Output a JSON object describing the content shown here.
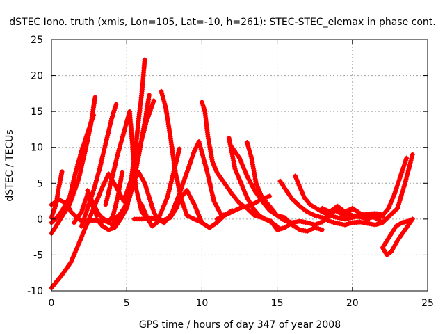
{
  "chart_data": {
    "type": "line",
    "title": "dSTEC Iono. truth (xmis, Lon=105, Lat=-10, h=261): STEC-STEC_elemax in phase cont.",
    "xlabel": "GPS time / hours of day 347 of year 2008",
    "ylabel": "dSTEC  / TECUs",
    "xlim": [
      0,
      25
    ],
    "ylim": [
      -10,
      25
    ],
    "xticks": [
      0,
      5,
      10,
      15,
      20,
      25
    ],
    "yticks": [
      -10,
      -5,
      0,
      5,
      10,
      15,
      20,
      25
    ],
    "xtick_labels": [
      "0",
      "5",
      "10",
      "15",
      "20",
      "25"
    ],
    "ytick_labels": [
      "-10",
      "-5",
      "0",
      "5",
      "10",
      "15",
      "20",
      "25"
    ],
    "grid": true,
    "marker": "plus",
    "color": "#ff0000",
    "series": [
      {
        "x": [
          0.0,
          0.3,
          0.8,
          1.3,
          1.8,
          2.2,
          2.6,
          3.0,
          3.4,
          3.8,
          4.3
        ],
        "values": [
          -9.6,
          -8.8,
          -7.5,
          -6.0,
          -3.5,
          -1.5,
          0.5,
          2.5,
          4.5,
          6.3,
          4.5
        ]
      },
      {
        "x": [
          4.3,
          4.8,
          5.3,
          5.6,
          5.8,
          6.0,
          6.2
        ],
        "values": [
          4.5,
          2.5,
          5.5,
          10.0,
          14.0,
          17.5,
          22.2
        ]
      },
      {
        "x": [
          0.0,
          0.3,
          0.5,
          0.7
        ],
        "values": [
          0.2,
          2.0,
          4.5,
          6.6
        ]
      },
      {
        "x": [
          0.0,
          0.6,
          1.2,
          1.8,
          2.3,
          2.6,
          2.9
        ],
        "values": [
          -2.0,
          0.0,
          2.0,
          5.5,
          10.0,
          13.0,
          17.0
        ]
      },
      {
        "x": [
          0.0,
          0.5,
          1.0,
          1.3,
          1.7,
          2.1,
          2.5,
          3.0,
          3.6,
          4.0,
          4.3,
          4.6,
          4.9,
          5.2,
          5.5,
          5.8,
          6.2,
          6.5,
          6.8,
          7.0,
          7.4,
          7.9,
          8.3,
          8.6,
          9.0,
          9.5,
          10.0,
          10.5,
          11.0,
          11.5,
          12.0
        ],
        "values": [
          2.0,
          2.7,
          2.2,
          1.0,
          0.2,
          -0.4,
          -0.2,
          -0.2,
          -0.3,
          0.0,
          0.2,
          0.8,
          1.8,
          3.5,
          5.5,
          6.5,
          5.0,
          3.0,
          1.0,
          0.2,
          -0.2,
          0.2,
          1.5,
          3.0,
          4.0,
          2.0,
          -0.5,
          -1.2,
          -0.5,
          0.5,
          1.2
        ]
      },
      {
        "x": [
          2.0,
          2.4,
          2.8,
          3.2,
          3.6,
          4.0,
          4.3
        ],
        "values": [
          -1.0,
          1.5,
          4.0,
          7.0,
          10.5,
          14.0,
          16.0
        ]
      },
      {
        "x": [
          1.5,
          2.0,
          2.4,
          2.7,
          3.0
        ],
        "values": [
          -0.5,
          1.0,
          3.5,
          2.0,
          0.5
        ]
      },
      {
        "x": [
          2.4,
          2.8,
          3.2,
          3.5,
          3.8,
          4.1,
          4.4,
          4.7
        ],
        "values": [
          4.0,
          2.0,
          0.5,
          0.0,
          -0.5,
          0.5,
          3.0,
          6.5
        ]
      },
      {
        "x": [
          3.0,
          3.4,
          3.8,
          4.2,
          4.6,
          5.0,
          5.4,
          5.8,
          6.3,
          6.8
        ],
        "values": [
          0.0,
          -1.0,
          -1.5,
          -1.2,
          0.0,
          1.5,
          5.0,
          9.5,
          13.5,
          16.5
        ]
      },
      {
        "x": [
          4.0,
          4.4,
          4.8,
          5.2,
          5.5,
          5.9,
          6.2,
          6.5
        ],
        "values": [
          -0.8,
          0.0,
          1.0,
          3.0,
          5.5,
          10.0,
          13.5,
          17.3
        ]
      },
      {
        "x": [
          5.5,
          6.0,
          6.5,
          7.0,
          7.5,
          8.0,
          8.5,
          9.0,
          9.5,
          9.8,
          10.3,
          10.8,
          11.3,
          11.8
        ],
        "values": [
          0.0,
          0.0,
          0.2,
          0.0,
          -0.5,
          0.8,
          3.5,
          6.5,
          9.5,
          10.8,
          7.0,
          2.5,
          0.5,
          0.8
        ]
      },
      {
        "x": [
          7.3,
          7.6,
          7.9,
          8.2,
          8.6,
          9.0,
          9.5,
          10.0,
          10.5
        ],
        "values": [
          17.8,
          15.5,
          11.5,
          7.0,
          3.0,
          0.5,
          0.0,
          -0.5,
          -1.2
        ]
      },
      {
        "x": [
          8.5,
          8.3,
          8.0,
          7.7,
          7.3,
          7.0,
          6.7,
          6.4,
          6.0
        ],
        "values": [
          9.8,
          8.0,
          5.5,
          3.0,
          1.0,
          -0.5,
          -1.0,
          0.0,
          2.0
        ]
      },
      {
        "x": [
          10.0,
          10.2,
          10.4,
          10.7,
          11.0,
          11.5,
          12.0,
          12.5,
          13.0,
          13.5,
          14.0,
          14.5,
          15.0
        ],
        "values": [
          16.3,
          15.0,
          11.5,
          8.0,
          6.5,
          5.0,
          3.5,
          2.2,
          1.5,
          0.5,
          0.2,
          -0.3,
          -1.0
        ]
      },
      {
        "x": [
          11.8,
          12.2,
          12.6,
          13.0,
          13.4,
          13.8,
          14.2,
          14.6,
          15.0,
          15.5,
          16.0
        ],
        "values": [
          11.3,
          7.0,
          5.0,
          3.0,
          1.5,
          0.5,
          0.0,
          -0.3,
          -1.5,
          -1.2,
          -0.5
        ]
      },
      {
        "x": [
          12.0,
          12.5,
          13.0,
          13.5,
          14.0,
          14.5,
          15.0,
          15.5,
          16.0
        ],
        "values": [
          10.0,
          8.5,
          6.0,
          4.0,
          2.5,
          1.2,
          0.5,
          -0.2,
          -0.5
        ]
      },
      {
        "x": [
          13.0,
          13.3,
          13.6,
          14.0,
          14.5,
          15.0,
          15.5,
          16.0,
          16.5,
          17.0,
          17.5,
          18.0
        ],
        "values": [
          10.7,
          8.5,
          5.0,
          3.0,
          1.8,
          0.5,
          0.2,
          -0.8,
          -1.5,
          -1.7,
          -1.2,
          -1.5
        ]
      },
      {
        "x": [
          11.0,
          11.5,
          12.0,
          12.5,
          13.0,
          13.5,
          14.0,
          14.5
        ],
        "values": [
          0.0,
          0.5,
          1.0,
          1.5,
          1.8,
          2.2,
          2.8,
          3.2
        ]
      },
      {
        "x": [
          15.2,
          15.6,
          16.0,
          16.5,
          17.0,
          17.5,
          18.0,
          18.5,
          19.0,
          19.5,
          20.0,
          20.5,
          21.0,
          21.5,
          22.0
        ],
        "values": [
          5.3,
          4.0,
          2.8,
          1.8,
          1.0,
          0.5,
          0.2,
          -0.3,
          -0.6,
          -0.8,
          -0.5,
          -0.4,
          -0.6,
          -0.8,
          -0.5
        ]
      },
      {
        "x": [
          16.2,
          16.5,
          16.8,
          17.2,
          17.6,
          18.0,
          18.5,
          19.0,
          19.5,
          20.0,
          20.5,
          21.0,
          21.5,
          22.0
        ],
        "values": [
          6.0,
          4.5,
          3.0,
          2.0,
          1.5,
          1.0,
          0.5,
          0.2,
          0.0,
          0.2,
          0.5,
          0.7,
          0.8,
          0.6
        ]
      },
      {
        "x": [
          16.0,
          16.5,
          17.0,
          17.5,
          18.0,
          18.5,
          19.0,
          19.5,
          20.0,
          20.5,
          21.0,
          21.5,
          22.0
        ],
        "values": [
          -0.5,
          -0.3,
          -0.5,
          -0.8,
          -0.4,
          0.5,
          1.5,
          1.0,
          0.5,
          0.3,
          0.0,
          0.5,
          0.3
        ]
      },
      {
        "x": [
          18.0,
          18.5,
          19.0,
          19.5,
          20.0,
          20.5,
          21.0,
          21.5,
          22.0,
          22.5,
          23.0,
          23.5,
          24.0
        ],
        "values": [
          1.5,
          1.0,
          1.8,
          1.0,
          1.5,
          0.8,
          0.3,
          0.2,
          -0.5,
          0.5,
          1.5,
          5.0,
          9.0
        ]
      },
      {
        "x": [
          19.0,
          19.5,
          20.0,
          20.5,
          21.0,
          21.5,
          22.0,
          22.4,
          22.8,
          23.2,
          23.6
        ],
        "values": [
          1.0,
          0.5,
          1.5,
          0.8,
          0.5,
          0.2,
          0.5,
          1.5,
          3.5,
          6.0,
          8.5
        ]
      },
      {
        "x": [
          22.0,
          22.3,
          22.6,
          23.0,
          23.5,
          24.0,
          23.7,
          23.3,
          22.9,
          22.6,
          22.3,
          22.0
        ],
        "values": [
          -4.0,
          -5.0,
          -4.5,
          -3.0,
          -1.5,
          0.0,
          -0.3,
          -0.5,
          -1.0,
          -2.0,
          -3.0,
          -4.0
        ]
      },
      {
        "x": [
          0.0,
          0.4,
          0.8,
          1.2,
          1.6,
          2.0,
          2.4,
          2.8
        ],
        "values": [
          -0.5,
          0.3,
          1.5,
          3.0,
          6.5,
          9.5,
          12.0,
          14.5
        ]
      },
      {
        "x": [
          3.6,
          4.0,
          4.4,
          4.8,
          5.2,
          5.6,
          6.0,
          6.5
        ],
        "values": [
          2.0,
          5.5,
          9.0,
          12.0,
          15.0,
          4.5,
          1.0,
          -0.2
        ]
      }
    ]
  }
}
